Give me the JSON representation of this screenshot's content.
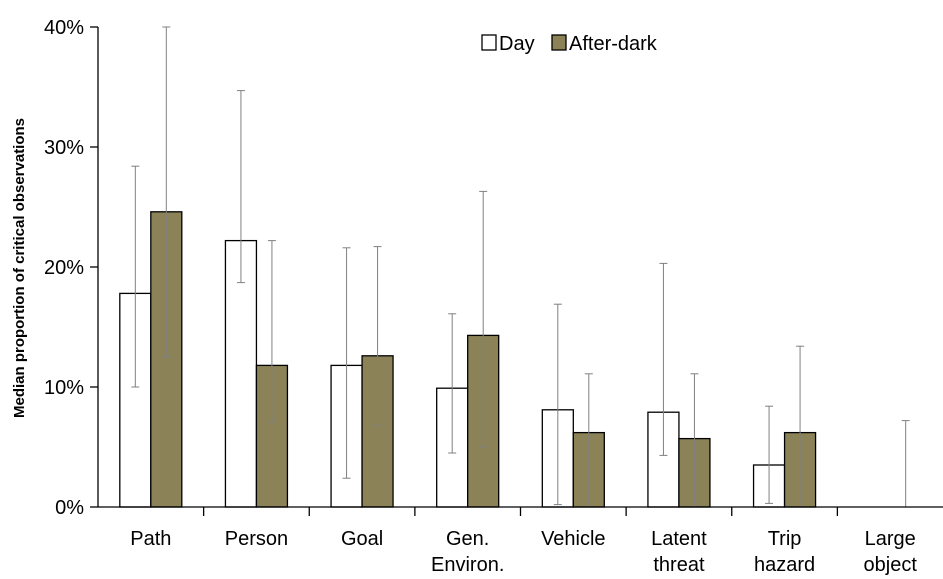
{
  "chart_data": {
    "type": "bar",
    "categories": [
      [
        "Path"
      ],
      [
        "Person"
      ],
      [
        "Goal"
      ],
      [
        "Gen.",
        "Environ."
      ],
      [
        "Vehicle"
      ],
      [
        "Latent",
        "threat"
      ],
      [
        "Trip",
        "hazard"
      ],
      [
        "Large",
        "object"
      ]
    ],
    "series": [
      {
        "name": "Day",
        "color": "#ffffff",
        "values": [
          17.8,
          22.2,
          11.8,
          9.9,
          8.1,
          7.9,
          3.5,
          0
        ],
        "err_low": [
          10.0,
          18.7,
          2.4,
          4.5,
          0.2,
          4.3,
          0.3,
          0
        ],
        "err_high": [
          28.4,
          34.7,
          21.6,
          16.1,
          16.9,
          20.3,
          8.4,
          0
        ]
      },
      {
        "name": "After-dark",
        "color": "#8c8257",
        "values": [
          24.6,
          11.8,
          12.6,
          14.3,
          6.2,
          5.7,
          6.2,
          0
        ],
        "err_low": [
          12.5,
          7.1,
          6.8,
          5.0,
          0,
          0,
          0,
          0
        ],
        "err_high": [
          40.0,
          22.2,
          21.7,
          26.3,
          11.1,
          11.1,
          13.4,
          7.2
        ]
      }
    ],
    "ylabel": "Median proportion of critical observations",
    "ylim": [
      0,
      40
    ],
    "yticks": [
      0,
      10,
      20,
      30,
      40
    ],
    "ytick_labels": [
      "0%",
      "10%",
      "20%",
      "30%",
      "40%"
    ],
    "grid": false,
    "legend_position": "top-center"
  }
}
